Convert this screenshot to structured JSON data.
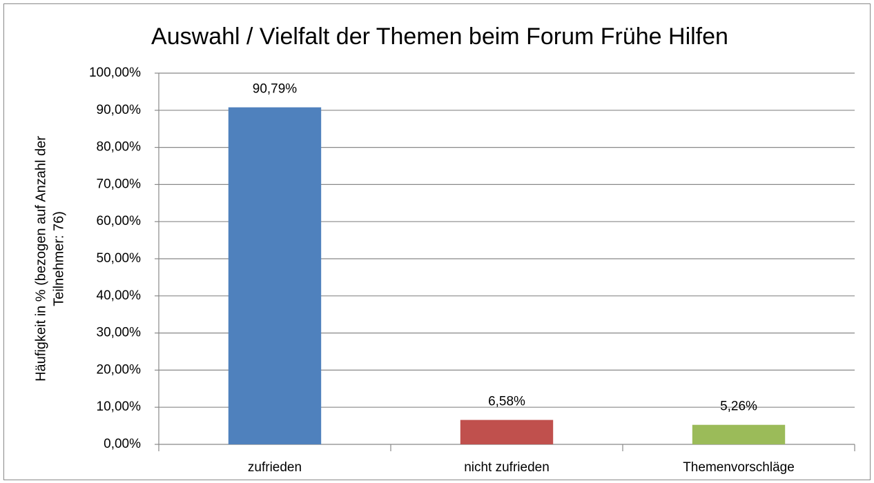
{
  "chart_data": {
    "type": "bar",
    "title": "Auswahl / Vielfalt der Themen beim Forum Frühe Hilfen",
    "y_label": [
      "Häufigkeit in % (bezogen auf Anzahl der",
      "Teilnehmer: 76)"
    ],
    "categories": [
      "zufrieden",
      "nicht zufrieden",
      "Themenvorschläge"
    ],
    "values": [
      90.79,
      6.58,
      5.26
    ],
    "value_labels": [
      "90,79%",
      "6,58%",
      "5,26%"
    ],
    "colors": [
      "#4f81bd",
      "#c0504d",
      "#9bbb59"
    ],
    "ylim": [
      0,
      100
    ],
    "yticks": [
      {
        "value": 0,
        "label": "0,00%"
      },
      {
        "value": 10,
        "label": "10,00%"
      },
      {
        "value": 20,
        "label": "20,00%"
      },
      {
        "value": 30,
        "label": "30,00%"
      },
      {
        "value": 40,
        "label": "40,00%"
      },
      {
        "value": 50,
        "label": "50,00%"
      },
      {
        "value": 60,
        "label": "60,00%"
      },
      {
        "value": 70,
        "label": "70,00%"
      },
      {
        "value": 80,
        "label": "80,00%"
      },
      {
        "value": 90,
        "label": "90,00%"
      },
      {
        "value": 100,
        "label": "100,00%"
      }
    ],
    "grid": true
  }
}
